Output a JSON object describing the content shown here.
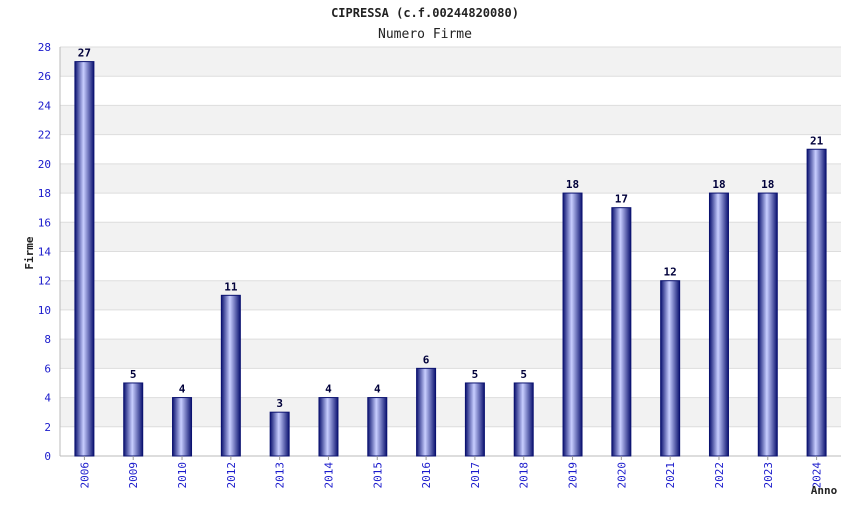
{
  "chart_data": {
    "type": "bar",
    "title": "CIPRESSA (c.f.00244820080)",
    "subtitle": "Numero Firme",
    "xlabel": "Anno",
    "ylabel": "Firme",
    "categories": [
      "2006",
      "2009",
      "2010",
      "2012",
      "2013",
      "2014",
      "2015",
      "2016",
      "2017",
      "2018",
      "2019",
      "2020",
      "2021",
      "2022",
      "2023",
      "2024"
    ],
    "values": [
      27,
      5,
      4,
      11,
      3,
      4,
      4,
      6,
      5,
      5,
      18,
      17,
      12,
      18,
      18,
      21
    ],
    "ylim": [
      0,
      28
    ],
    "yticks": [
      0,
      2,
      4,
      6,
      8,
      10,
      12,
      14,
      16,
      18,
      20,
      22,
      24,
      26,
      28
    ],
    "grid": true,
    "colors": {
      "bar_dark": "#0b1270",
      "bar_light": "#c8ceff",
      "band": "#f2f2f2",
      "tick_text": "#1a1acc"
    }
  }
}
